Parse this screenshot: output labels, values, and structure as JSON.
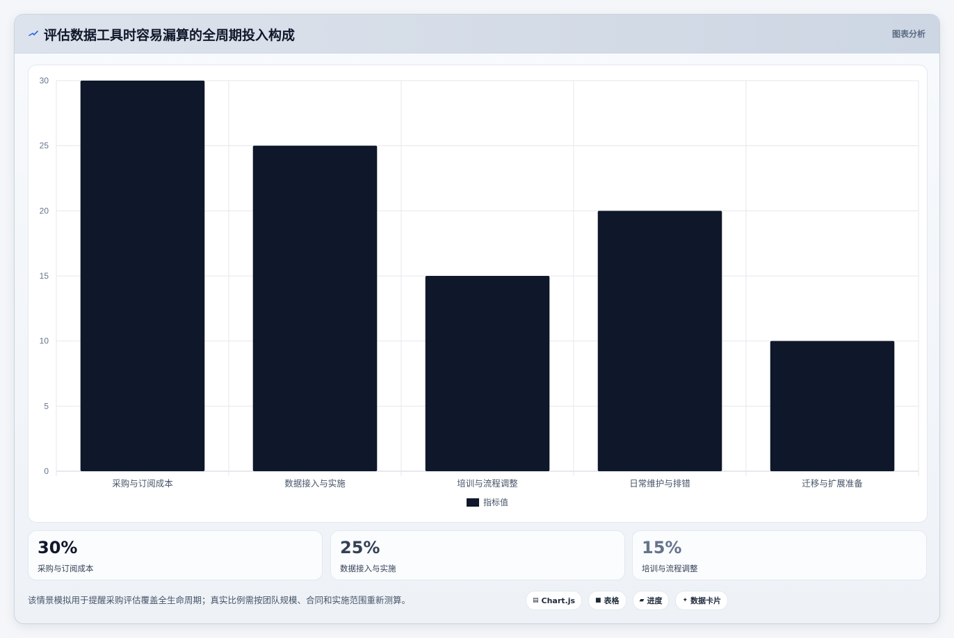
{
  "header": {
    "title": "评估数据工具时容易漏算的全周期投入构成",
    "tag": "图表分析",
    "accent": "#2563eb"
  },
  "chart_data": {
    "type": "bar",
    "title": "",
    "xlabel": "",
    "ylabel": "",
    "categories": [
      "采购与订阅成本",
      "数据接入与实施",
      "培训与流程调整",
      "日常维护与排错",
      "迁移与扩展准备"
    ],
    "series": [
      {
        "name": "指标值",
        "values": [
          30,
          25,
          15,
          20,
          10
        ],
        "color": "#0f172a"
      }
    ],
    "ylim": [
      0,
      30
    ],
    "yticks": [
      0,
      5,
      10,
      15,
      20,
      25,
      30
    ],
    "grid": true,
    "legend": "bottom"
  },
  "stats": [
    {
      "value": "30%",
      "label": "采购与订阅成本",
      "color": "#0f172a"
    },
    {
      "value": "25%",
      "label": "数据接入与实施",
      "color": "#334155"
    },
    {
      "value": "15%",
      "label": "培训与流程调整",
      "color": "#64748b"
    }
  ],
  "note": "该情景模拟用于提醒采购评估覆盖全生命周期；真实比例需按团队规模、合同和实施范围重新测算。",
  "chips": [
    {
      "glyph": "▤",
      "label": "Chart.js"
    },
    {
      "glyph": "■",
      "label": "表格"
    },
    {
      "glyph": "▰",
      "label": "进度"
    },
    {
      "glyph": "✦",
      "label": "数据卡片"
    }
  ]
}
